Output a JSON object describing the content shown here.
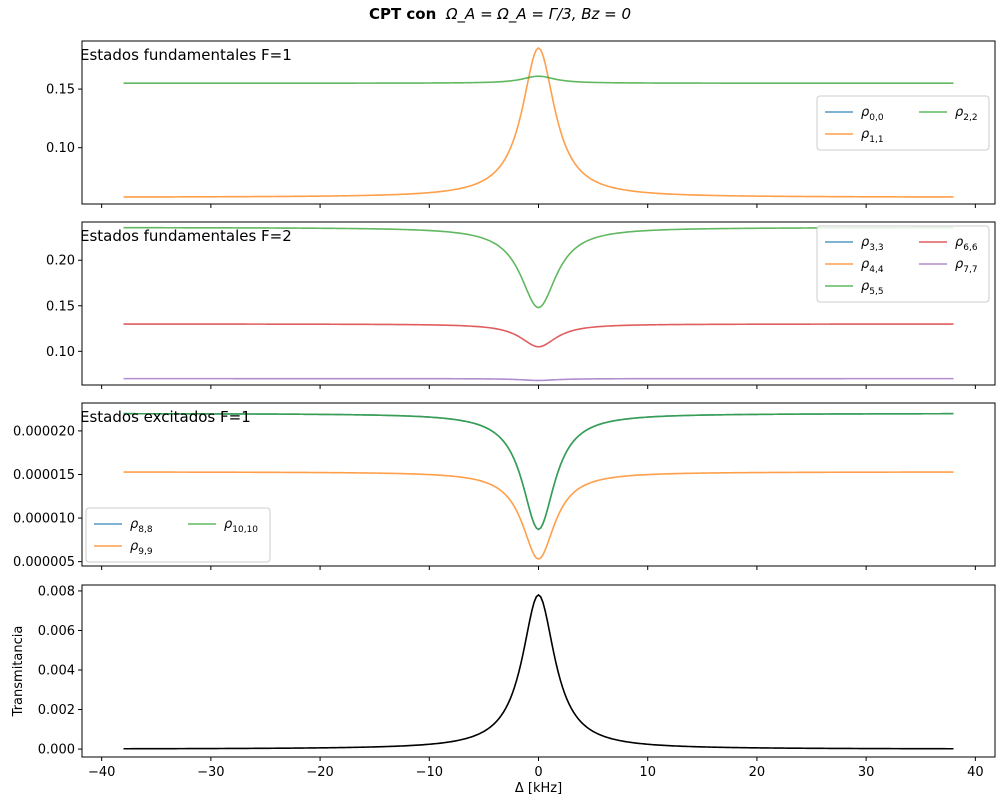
{
  "figure": {
    "title_bold": "CPT con",
    "title_math": "Ω_A = Ω_A = Γ/3, Bz = 0"
  },
  "colors": {
    "blue": "#1f77b4",
    "orange": "#ff7f0e",
    "green": "#2ca02c",
    "red": "#d62728",
    "purple": "#9467bd",
    "black": "#000000"
  },
  "chart_data": [
    {
      "type": "line",
      "title": "Estados fundamentales F=1",
      "xlabel": "",
      "ylabel": "",
      "xlim": [
        -41.8,
        41.8
      ],
      "ylim": [
        0.052,
        0.191
      ],
      "yticks": [
        0.1,
        0.15
      ],
      "ytick_labels": [
        "0.10",
        "0.15"
      ],
      "grid": false,
      "legend": {
        "placement": "center-right",
        "ncol": 2
      },
      "x_range": [
        -38,
        38
      ],
      "series": [
        {
          "name": "ρ0,0",
          "sub": "0,0",
          "color": "blue",
          "base": 0.155,
          "peak": 0.161,
          "width": 1.8,
          "visible": false
        },
        {
          "name": "ρ1,1",
          "sub": "1,1",
          "color": "orange",
          "base": 0.0577,
          "peak": 0.185,
          "width": 1.8
        },
        {
          "name": "ρ2,2",
          "sub": "2,2",
          "color": "green",
          "base": 0.155,
          "peak": 0.161,
          "width": 1.8
        }
      ]
    },
    {
      "type": "line",
      "title": "Estados fundamentales F=2",
      "xlabel": "",
      "ylabel": "",
      "xlim": [
        -41.8,
        41.8
      ],
      "ylim": [
        0.063,
        0.242
      ],
      "yticks": [
        0.1,
        0.15,
        0.2
      ],
      "ytick_labels": [
        "0.10",
        "0.15",
        "0.20"
      ],
      "grid": false,
      "legend": {
        "placement": "top-right",
        "ncol": 2
      },
      "x_range": [
        -38,
        38
      ],
      "series": [
        {
          "name": "ρ3,3",
          "sub": "3,3",
          "color": "blue",
          "base": 0.07,
          "peak": 0.068,
          "width": 2.0,
          "visible": false
        },
        {
          "name": "ρ4,4",
          "sub": "4,4",
          "color": "orange",
          "base": 0.13,
          "peak": 0.105,
          "width": 2.0,
          "visible": false
        },
        {
          "name": "ρ5,5",
          "sub": "5,5",
          "color": "green",
          "base": 0.236,
          "peak": 0.148,
          "width": 2.0
        },
        {
          "name": "ρ6,6",
          "sub": "6,6",
          "color": "red",
          "base": 0.13,
          "peak": 0.105,
          "width": 2.0
        },
        {
          "name": "ρ7,7",
          "sub": "7,7",
          "color": "purple",
          "base": 0.07,
          "peak": 0.068,
          "width": 2.0
        }
      ]
    },
    {
      "type": "line",
      "title": "Estados excitados F=1",
      "xlabel": "",
      "ylabel": "",
      "xlim": [
        -41.8,
        41.8
      ],
      "ylim": [
        4.5e-06,
        2.32e-05
      ],
      "yticks": [
        5e-06,
        1e-05,
        1.5e-05,
        2e-05
      ],
      "ytick_labels": [
        "0.000005",
        "0.000010",
        "0.000015",
        "0.000020"
      ],
      "grid": false,
      "legend": {
        "placement": "bottom-left",
        "ncol": 2
      },
      "x_range": [
        -38,
        38
      ],
      "series": [
        {
          "name": "ρ8,8",
          "sub": "8,8",
          "color": "blue",
          "base": 2.2e-05,
          "peak": 8.7e-06,
          "width": 1.8
        },
        {
          "name": "ρ9,9",
          "sub": "9,9",
          "color": "orange",
          "base": 1.53e-05,
          "peak": 5.3e-06,
          "width": 1.8
        },
        {
          "name": "ρ10,10",
          "sub": "10,10",
          "color": "green",
          "base": 2.2e-05,
          "peak": 8.7e-06,
          "width": 1.8
        }
      ]
    },
    {
      "type": "line",
      "title": "",
      "xlabel": "Δ [kHz]",
      "ylabel": "Transmitancia",
      "xlim": [
        -41.8,
        41.8
      ],
      "ylim": [
        -0.0004,
        0.0083
      ],
      "yticks": [
        0.0,
        0.002,
        0.004,
        0.006,
        0.008
      ],
      "ytick_labels": [
        "0.000",
        "0.002",
        "0.004",
        "0.006",
        "0.008"
      ],
      "xticks": [
        -40,
        -30,
        -20,
        -10,
        0,
        10,
        20,
        30,
        40
      ],
      "xtick_labels": [
        "−40",
        "−30",
        "−20",
        "−10",
        "0",
        "10",
        "20",
        "30",
        "40"
      ],
      "grid": false,
      "legend": null,
      "x_range": [
        -38,
        38
      ],
      "series": [
        {
          "name": "",
          "color": "black",
          "base": 0.0,
          "peak": 0.0078,
          "width": 1.8
        }
      ]
    }
  ]
}
